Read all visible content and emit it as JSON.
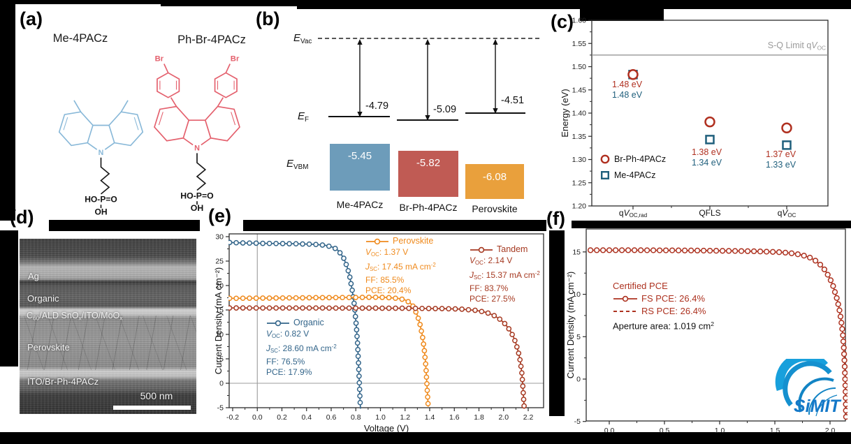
{
  "figure": {
    "background": "#000000",
    "panel_bg": "#ffffff"
  },
  "panel_labels": {
    "a": "(a)",
    "b": "(b)",
    "c": "(c)",
    "d": "(d)",
    "e": "(e)",
    "f": "(f)"
  },
  "panel_a": {
    "molecule_left": {
      "name": "Me-4PACz",
      "color": "#88b8d8"
    },
    "molecule_right": {
      "name": "Ph-Br-4PACz",
      "color": "#e4606d"
    },
    "n_label": "N",
    "br_label": "Br",
    "acid_top": "HO-P=O",
    "acid_bottom": "OH"
  },
  "panel_b": {
    "evac_label": [
      {
        "i": "E"
      },
      {
        "s": "Vac"
      }
    ],
    "ef_label": [
      {
        "i": "E"
      },
      {
        "s": "F"
      }
    ],
    "evbm_label": [
      {
        "i": "E"
      },
      {
        "s": "VBM"
      }
    ],
    "materials": [
      {
        "name": "Me-4PACz",
        "ef": "-4.79",
        "evbm": "-5.45",
        "color": "#6d9cba"
      },
      {
        "name": "Br-Ph-4PACz",
        "ef": "-5.09",
        "evbm": "-5.82",
        "color": "#c05b54"
      },
      {
        "name": "Perovskite",
        "ef": "-4.51",
        "evbm": "-6.08",
        "color": "#e9a03c"
      }
    ]
  },
  "panel_d": {
    "layer_labels": [
      [
        {
          "t": "Ag"
        }
      ],
      [
        {
          "t": "Organic"
        }
      ],
      [
        {
          "t": "C"
        },
        {
          "s": "60"
        },
        {
          "t": "/ALD SnO"
        },
        {
          "s": "x"
        },
        {
          "t": "/ITO/MoO"
        },
        {
          "s": "x"
        }
      ],
      [
        {
          "t": "Perovskite"
        }
      ],
      [
        {
          "t": "ITO/Br-Ph-4PACz"
        }
      ]
    ],
    "scale_bar": "500 nm"
  },
  "simit_logo_text": "SiMIT",
  "chart_data": [
    {
      "id": "c",
      "type": "scatter",
      "ylabel": "Energy (eV)",
      "ylim": [
        1.2,
        1.6
      ],
      "yticks": [
        1.2,
        1.25,
        1.3,
        1.35,
        1.4,
        1.45,
        1.5,
        1.55,
        1.6
      ],
      "ytick_labels": [
        "1.20",
        "1.25",
        "1.30",
        "1.35",
        "1.40",
        "1.45",
        "1.50",
        "1.55",
        "1.60"
      ],
      "yminor_step": 0.025,
      "categories": [
        [
          {
            "t": "q"
          },
          {
            "i": "V"
          },
          {
            "s": "OC,rad"
          }
        ],
        [
          {
            "t": "QFLS"
          }
        ],
        [
          {
            "t": "q"
          },
          {
            "i": "V"
          },
          {
            "s": "OC"
          }
        ]
      ],
      "series": [
        {
          "name": "Br-Ph-4PACz",
          "marker": "circle",
          "color": "#b03020",
          "values": [
            1.483,
            1.381,
            1.368
          ]
        },
        {
          "name": "Me-4PACz",
          "marker": "square",
          "color": "#1f5f7c",
          "values": [
            1.483,
            1.343,
            1.331
          ]
        }
      ],
      "sq_limit": {
        "value": 1.525,
        "color": "#8c8c8c",
        "label": [
          {
            "t": "S-Q Limit q"
          },
          {
            "i": "V"
          },
          {
            "s": "OC"
          }
        ]
      },
      "annotations": [
        {
          "red": "1.48 eV",
          "blue": "1.48 eV"
        },
        {
          "red": "1.38 eV",
          "blue": "1.34 eV"
        },
        {
          "red": "1.37 eV",
          "blue": "1.33 eV"
        }
      ]
    },
    {
      "id": "e",
      "type": "line",
      "xlabel": "Voltage (V)",
      "ylabel": "Current Density (mA cm⁻²)",
      "xlim": [
        -0.2,
        2.2
      ],
      "ylim": [
        -5,
        30
      ],
      "xticks": [
        -0.2,
        0,
        0.2,
        0.4,
        0.6,
        0.8,
        1,
        1.2,
        1.4,
        1.6,
        1.8,
        2,
        2.2
      ],
      "xtick_labels": [
        "-0.2",
        "0.0",
        "0.2",
        "0.4",
        "0.6",
        "0.8",
        "1.0",
        "1.2",
        "1.4",
        "1.6",
        "1.8",
        "2.0",
        "2.2"
      ],
      "yticks": [
        -5,
        0,
        5,
        10,
        15,
        20,
        25,
        30
      ],
      "ytick_labels": [
        "-5",
        "0",
        "5",
        "10",
        "15",
        "20",
        "25",
        "30"
      ],
      "xminor_step": 0.1,
      "yminor_step": 2.5,
      "series": [
        {
          "name": "Organic",
          "color": "#33658a",
          "metrics": [
            [
              {
                "i": "V"
              },
              {
                "s": "OC"
              },
              {
                "t": ": 0.82 V"
              }
            ],
            [
              {
                "i": "J"
              },
              {
                "s": "SC"
              },
              {
                "t": ": 28.60 mA cm"
              },
              {
                "u": "-2"
              }
            ],
            [
              {
                "t": "FF: 76.5%"
              }
            ],
            [
              {
                "t": "PCE: 17.9%"
              }
            ]
          ],
          "points": [
            [
              -0.225,
              28.8
            ],
            [
              -0.1,
              28.7
            ],
            [
              0,
              28.65
            ],
            [
              0.15,
              28.6
            ],
            [
              0.3,
              28.55
            ],
            [
              0.45,
              28.45
            ],
            [
              0.55,
              28.25
            ],
            [
              0.62,
              27.8
            ],
            [
              0.66,
              27.1
            ],
            [
              0.7,
              25.7
            ],
            [
              0.73,
              23.8
            ],
            [
              0.75,
              21.9
            ],
            [
              0.77,
              19.2
            ],
            [
              0.79,
              15.6
            ],
            [
              0.805,
              11.5
            ],
            [
              0.815,
              7.8
            ],
            [
              0.822,
              4
            ],
            [
              0.828,
              0.5
            ],
            [
              0.832,
              -2
            ],
            [
              0.838,
              -5.2
            ]
          ]
        },
        {
          "name": "Perovskite",
          "color": "#ef8a1d",
          "metrics": [
            [
              {
                "i": "V"
              },
              {
                "s": "OC"
              },
              {
                "t": ": 1.37 V"
              }
            ],
            [
              {
                "i": "J"
              },
              {
                "s": "SC"
              },
              {
                "t": ": 17.45 mA cm"
              },
              {
                "u": "-2"
              }
            ],
            [
              {
                "t": "FF: 85.5%"
              }
            ],
            [
              {
                "t": "PCE: 20.4%"
              }
            ]
          ],
          "points": [
            [
              -0.225,
              17.38
            ],
            [
              0,
              17.42
            ],
            [
              0.2,
              17.45
            ],
            [
              0.4,
              17.5
            ],
            [
              0.6,
              17.52
            ],
            [
              0.8,
              17.56
            ],
            [
              0.95,
              17.6
            ],
            [
              1.05,
              17.55
            ],
            [
              1.15,
              17.35
            ],
            [
              1.2,
              17.05
            ],
            [
              1.24,
              16.5
            ],
            [
              1.27,
              15.6
            ],
            [
              1.3,
              13.9
            ],
            [
              1.32,
              12.2
            ],
            [
              1.34,
              9.8
            ],
            [
              1.355,
              7.2
            ],
            [
              1.365,
              4.6
            ],
            [
              1.372,
              2.2
            ],
            [
              1.378,
              -0.5
            ],
            [
              1.383,
              -2.6
            ],
            [
              1.388,
              -4.8
            ]
          ]
        },
        {
          "name": "Tandem",
          "color": "#a63a22",
          "metrics": [
            [
              {
                "i": "V"
              },
              {
                "s": "OC"
              },
              {
                "t": ": 2.14 V"
              }
            ],
            [
              {
                "i": "J"
              },
              {
                "s": "SC"
              },
              {
                "t": ": 15.37 mA cm"
              },
              {
                "u": "-2"
              }
            ],
            [
              {
                "t": "FF: 83.7%"
              }
            ],
            [
              {
                "t": "PCE: 27.5%"
              }
            ]
          ],
          "points": [
            [
              -0.225,
              15.42
            ],
            [
              0,
              15.4
            ],
            [
              0.4,
              15.4
            ],
            [
              0.8,
              15.38
            ],
            [
              1.2,
              15.35
            ],
            [
              1.5,
              15.28
            ],
            [
              1.65,
              15.18
            ],
            [
              1.78,
              14.9
            ],
            [
              1.86,
              14.5
            ],
            [
              1.92,
              13.9
            ],
            [
              1.97,
              13.1
            ],
            [
              2.01,
              12.2
            ],
            [
              2.05,
              10.9
            ],
            [
              2.08,
              9.5
            ],
            [
              2.1,
              8.2
            ],
            [
              2.12,
              6.4
            ],
            [
              2.135,
              4.6
            ],
            [
              2.148,
              2.2
            ],
            [
              2.156,
              -0.5
            ],
            [
              2.162,
              -2.8
            ],
            [
              2.168,
              -5.2
            ]
          ]
        }
      ]
    },
    {
      "id": "f",
      "type": "line",
      "ylabel": "Current Density (mA cm⁻²)",
      "xlim": [
        -0.21,
        2.14
      ],
      "ylim": [
        -5,
        17.7
      ],
      "xticks": [
        0,
        0.5,
        1,
        1.5,
        2
      ],
      "xtick_labels": [
        "0.0",
        "0.5",
        "1.0",
        "1.5",
        "2.0"
      ],
      "yticks": [
        -5,
        0,
        5,
        10,
        15
      ],
      "ytick_labels": [
        "-5",
        "0",
        "5",
        "10",
        "15"
      ],
      "xminor_step": 0.25,
      "yminor_step": 2.5,
      "legend_title": "Certified PCE",
      "legend": [
        {
          "label": "FS PCE: 26.4%",
          "style": "solid-circle"
        },
        {
          "label": "RS PCE: 26.4%",
          "style": "dashed"
        }
      ],
      "note": [
        {
          "t": "Aperture area: 1.019 cm"
        },
        {
          "u": "2"
        }
      ],
      "series": [
        {
          "name": "FS",
          "color": "#ad3220",
          "points": [
            [
              -0.17,
              15.2
            ],
            [
              0,
              15.2
            ],
            [
              0.3,
              15.2
            ],
            [
              0.6,
              15.18
            ],
            [
              0.9,
              15.15
            ],
            [
              1.1,
              15.12
            ],
            [
              1.3,
              15.08
            ],
            [
              1.45,
              15.02
            ],
            [
              1.57,
              14.95
            ],
            [
              1.67,
              14.82
            ],
            [
              1.75,
              14.62
            ],
            [
              1.82,
              14.32
            ],
            [
              1.87,
              13.95
            ],
            [
              1.92,
              13.4
            ],
            [
              1.96,
              12.75
            ],
            [
              2,
              11.85
            ],
            [
              2.03,
              10.9
            ],
            [
              2.06,
              9.6
            ],
            [
              2.08,
              8.5
            ],
            [
              2.1,
              7
            ],
            [
              2.115,
              5.4
            ],
            [
              2.125,
              3.6
            ],
            [
              2.132,
              1.8
            ],
            [
              2.137,
              0
            ],
            [
              2.141,
              -1.8
            ],
            [
              2.145,
              -4.5
            ]
          ]
        }
      ]
    }
  ]
}
